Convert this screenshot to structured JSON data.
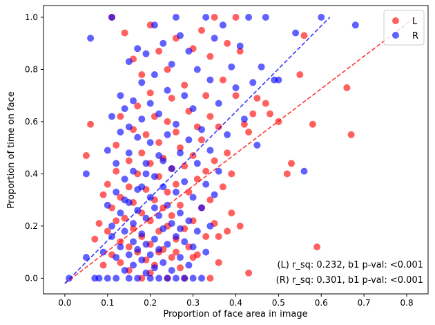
{
  "chart_data": {
    "type": "scatter",
    "xlabel": "Proportion of face area in image",
    "ylabel": "Proportion of time on face",
    "xlim": [
      -0.05,
      0.85
    ],
    "ylim": [
      -0.06,
      1.045
    ],
    "xticks": [
      0.0,
      0.1,
      0.2,
      0.3,
      0.4,
      0.5,
      0.6,
      0.7,
      0.8
    ],
    "yticks": [
      0.0,
      0.2,
      0.4,
      0.6,
      0.8,
      1.0
    ],
    "xtick_labels": [
      "0.0",
      "0.1",
      "0.2",
      "0.3",
      "0.4",
      "0.5",
      "0.6",
      "0.7",
      "0.8"
    ],
    "ytick_labels": [
      "0.0",
      "0.2",
      "0.4",
      "0.6",
      "0.8",
      "1.0"
    ],
    "grid": false,
    "legend_position": "top-right",
    "series": [
      {
        "name": "L",
        "color": "#ff0000",
        "fit_line": {
          "x": [
            0.0,
            0.82
          ],
          "y": [
            -0.02,
            1.0
          ]
        },
        "points": [
          [
            0.06,
            0.59
          ],
          [
            0.05,
            0.47
          ],
          [
            0.07,
            0.15
          ],
          [
            0.08,
            0.21
          ],
          [
            0.09,
            0.32
          ],
          [
            0.09,
            0.05
          ],
          [
            0.1,
            0.18
          ],
          [
            0.1,
            0.36
          ],
          [
            0.11,
            0.27
          ],
          [
            0.11,
            0.09
          ],
          [
            0.11,
            1.0
          ],
          [
            0.12,
            0.22
          ],
          [
            0.12,
            0.51
          ],
          [
            0.12,
            0.41
          ],
          [
            0.13,
            0.14
          ],
          [
            0.13,
            0.06
          ],
          [
            0.13,
            0.31
          ],
          [
            0.13,
            0.62
          ],
          [
            0.14,
            0.23
          ],
          [
            0.14,
            0.94
          ],
          [
            0.15,
            0.12
          ],
          [
            0.15,
            0.45
          ],
          [
            0.15,
            0.35
          ],
          [
            0.15,
            0.03
          ],
          [
            0.16,
            0.19
          ],
          [
            0.16,
            0.29
          ],
          [
            0.16,
            0.57
          ],
          [
            0.16,
            0.84
          ],
          [
            0.17,
            0.1
          ],
          [
            0.17,
            0.4
          ],
          [
            0.17,
            0.66
          ],
          [
            0.18,
            0.16
          ],
          [
            0.18,
            0.25
          ],
          [
            0.18,
            0.48
          ],
          [
            0.18,
            0.78
          ],
          [
            0.19,
            0.07
          ],
          [
            0.19,
            0.34
          ],
          [
            0.19,
            0.55
          ],
          [
            0.2,
            0.13
          ],
          [
            0.2,
            0.22
          ],
          [
            0.2,
            0.44
          ],
          [
            0.2,
            0.71
          ],
          [
            0.2,
            0.97
          ],
          [
            0.21,
            0.05
          ],
          [
            0.21,
            0.3
          ],
          [
            0.21,
            0.62
          ],
          [
            0.22,
            0.18
          ],
          [
            0.22,
            0.39
          ],
          [
            0.22,
            0.52
          ],
          [
            0.22,
            0.87
          ],
          [
            0.23,
            0.11
          ],
          [
            0.23,
            0.27
          ],
          [
            0.23,
            0.46
          ],
          [
            0.24,
            0.2
          ],
          [
            0.24,
            0.33
          ],
          [
            0.24,
            0.6
          ],
          [
            0.24,
            0.8
          ],
          [
            0.25,
            0.08
          ],
          [
            0.25,
            0.24
          ],
          [
            0.25,
            0.42
          ],
          [
            0.25,
            0.69
          ],
          [
            0.26,
            0.15
          ],
          [
            0.26,
            0.36
          ],
          [
            0.26,
            0.56
          ],
          [
            0.26,
            0.92
          ],
          [
            0.27,
            0.04
          ],
          [
            0.27,
            0.28
          ],
          [
            0.27,
            0.5
          ],
          [
            0.28,
            0.19
          ],
          [
            0.28,
            0.43
          ],
          [
            0.28,
            0.74
          ],
          [
            0.29,
            0.12
          ],
          [
            0.29,
            0.33
          ],
          [
            0.29,
            0.64
          ],
          [
            0.3,
            0.22
          ],
          [
            0.3,
            0.47
          ],
          [
            0.3,
            0.88
          ],
          [
            0.31,
            0.09
          ],
          [
            0.31,
            0.38
          ],
          [
            0.31,
            0.58
          ],
          [
            0.32,
            0.27
          ],
          [
            0.32,
            0.53
          ],
          [
            0.32,
            0.95
          ],
          [
            0.33,
            0.16
          ],
          [
            0.33,
            0.41
          ],
          [
            0.33,
            0.7
          ],
          [
            0.34,
            0.3
          ],
          [
            0.34,
            0.62
          ],
          [
            0.34,
            0.85
          ],
          [
            0.35,
            0.21
          ],
          [
            0.35,
            0.45
          ],
          [
            0.35,
            1.0
          ],
          [
            0.36,
            0.06
          ],
          [
            0.36,
            0.58
          ],
          [
            0.37,
            0.35
          ],
          [
            0.37,
            0.76
          ],
          [
            0.38,
            0.48
          ],
          [
            0.38,
            0.9
          ],
          [
            0.39,
            0.4
          ],
          [
            0.39,
            0.25
          ],
          [
            0.4,
            0.7
          ],
          [
            0.4,
            1.0
          ],
          [
            0.41,
            0.2
          ],
          [
            0.41,
            0.87
          ],
          [
            0.42,
            0.59
          ],
          [
            0.43,
            0.02
          ],
          [
            0.43,
            0.56
          ],
          [
            0.44,
            0.63
          ],
          [
            0.45,
            0.69
          ],
          [
            0.47,
            0.67
          ],
          [
            0.48,
            0.63
          ],
          [
            0.5,
            0.6
          ],
          [
            0.52,
            0.4
          ],
          [
            0.53,
            0.44
          ],
          [
            0.55,
            0.78
          ],
          [
            0.56,
            0.93
          ],
          [
            0.58,
            0.59
          ],
          [
            0.59,
            0.12
          ],
          [
            0.66,
            0.73
          ],
          [
            0.67,
            0.55
          ],
          [
            0.24,
            0.0
          ],
          [
            0.28,
            0.0
          ],
          [
            0.2,
            0.02
          ],
          [
            0.34,
            0.0
          ],
          [
            0.36,
            0.16
          ],
          [
            0.38,
            0.18
          ],
          [
            0.18,
            0.0
          ],
          [
            0.26,
            0.1
          ],
          [
            0.3,
            0.08
          ],
          [
            0.22,
            0.1
          ]
        ]
      },
      {
        "name": "R",
        "color": "#0000ff",
        "fit_line": {
          "x": [
            0.0,
            0.62
          ],
          "y": [
            -0.02,
            1.0
          ]
        },
        "points": [
          [
            0.01,
            0.0
          ],
          [
            0.05,
            0.4
          ],
          [
            0.05,
            0.08
          ],
          [
            0.06,
            0.92
          ],
          [
            0.07,
            0.0
          ],
          [
            0.08,
            0.0
          ],
          [
            0.09,
            0.1
          ],
          [
            0.1,
            0.28
          ],
          [
            0.1,
            0.49
          ],
          [
            0.1,
            0.0
          ],
          [
            0.11,
            0.62
          ],
          [
            0.11,
            0.16
          ],
          [
            0.11,
            0.2
          ],
          [
            0.12,
            0.0
          ],
          [
            0.12,
            0.33
          ],
          [
            0.12,
            0.44
          ],
          [
            0.12,
            0.08
          ],
          [
            0.13,
            0.25
          ],
          [
            0.13,
            0.56
          ],
          [
            0.13,
            0.7
          ],
          [
            0.13,
            0.12
          ],
          [
            0.14,
            0.03
          ],
          [
            0.14,
            0.38
          ],
          [
            0.14,
            0.18
          ],
          [
            0.14,
            0.65
          ],
          [
            0.15,
            0.0
          ],
          [
            0.15,
            0.09
          ],
          [
            0.15,
            0.29
          ],
          [
            0.15,
            0.48
          ],
          [
            0.15,
            0.83
          ],
          [
            0.16,
            0.14
          ],
          [
            0.16,
            0.21
          ],
          [
            0.16,
            0.05
          ],
          [
            0.16,
            0.41
          ],
          [
            0.16,
            0.68
          ],
          [
            0.17,
            0.0
          ],
          [
            0.17,
            0.11
          ],
          [
            0.17,
            0.26
          ],
          [
            0.17,
            0.54
          ],
          [
            0.17,
            0.88
          ],
          [
            0.18,
            0.07
          ],
          [
            0.18,
            0.17
          ],
          [
            0.18,
            0.35
          ],
          [
            0.18,
            0.61
          ],
          [
            0.18,
            0.75
          ],
          [
            0.19,
            0.02
          ],
          [
            0.19,
            0.13
          ],
          [
            0.19,
            0.23
          ],
          [
            0.19,
            0.44
          ],
          [
            0.19,
            0.86
          ],
          [
            0.2,
            0.0
          ],
          [
            0.2,
            0.09
          ],
          [
            0.2,
            0.31
          ],
          [
            0.2,
            0.52
          ],
          [
            0.2,
            0.67
          ],
          [
            0.21,
            0.15
          ],
          [
            0.21,
            0.04
          ],
          [
            0.21,
            0.39
          ],
          [
            0.21,
            0.78
          ],
          [
            0.21,
            0.97
          ],
          [
            0.22,
            0.0
          ],
          [
            0.22,
            0.11
          ],
          [
            0.22,
            0.24
          ],
          [
            0.22,
            0.47
          ],
          [
            0.22,
            0.63
          ],
          [
            0.23,
            0.06
          ],
          [
            0.23,
            0.19
          ],
          [
            0.23,
            0.35
          ],
          [
            0.23,
            0.9
          ],
          [
            0.24,
            0.0
          ],
          [
            0.24,
            0.13
          ],
          [
            0.24,
            0.28
          ],
          [
            0.24,
            0.55
          ],
          [
            0.24,
            0.72
          ],
          [
            0.25,
            0.03
          ],
          [
            0.25,
            0.21
          ],
          [
            0.25,
            0.42
          ],
          [
            0.25,
            0.82
          ],
          [
            0.26,
            0.0
          ],
          [
            0.26,
            0.16
          ],
          [
            0.26,
            0.33
          ],
          [
            0.26,
            0.59
          ],
          [
            0.27,
            0.08
          ],
          [
            0.27,
            0.25
          ],
          [
            0.27,
            0.48
          ],
          [
            0.27,
            0.93
          ],
          [
            0.28,
            0.0
          ],
          [
            0.28,
            0.14
          ],
          [
            0.28,
            0.37
          ],
          [
            0.28,
            0.7
          ],
          [
            0.29,
            0.05
          ],
          [
            0.29,
            0.22
          ],
          [
            0.29,
            0.53
          ],
          [
            0.29,
            0.87
          ],
          [
            0.3,
            0.0
          ],
          [
            0.3,
            0.12
          ],
          [
            0.3,
            0.31
          ],
          [
            0.3,
            0.65
          ],
          [
            0.31,
            0.18
          ],
          [
            0.31,
            0.44
          ],
          [
            0.31,
            0.8
          ],
          [
            0.32,
            0.0
          ],
          [
            0.32,
            0.27
          ],
          [
            0.32,
            0.57
          ],
          [
            0.33,
            0.1
          ],
          [
            0.33,
            0.36
          ],
          [
            0.33,
            1.0
          ],
          [
            0.34,
            0.2
          ],
          [
            0.34,
            0.49
          ],
          [
            0.34,
            0.76
          ],
          [
            0.35,
            0.32
          ],
          [
            0.35,
            0.92
          ],
          [
            0.36,
            0.41
          ],
          [
            0.36,
            0.67
          ],
          [
            0.37,
            0.97
          ],
          [
            0.38,
            0.55
          ],
          [
            0.39,
            0.81
          ],
          [
            0.4,
            0.73
          ],
          [
            0.41,
            0.89
          ],
          [
            0.42,
            0.61
          ],
          [
            0.43,
            1.0
          ],
          [
            0.44,
            0.75
          ],
          [
            0.45,
            0.51
          ],
          [
            0.46,
            0.81
          ],
          [
            0.47,
            1.0
          ],
          [
            0.49,
            0.76
          ],
          [
            0.5,
            0.76
          ],
          [
            0.54,
            0.94
          ],
          [
            0.56,
            0.41
          ],
          [
            0.6,
            1.0
          ],
          [
            0.68,
            0.97
          ],
          [
            0.11,
            1.0
          ],
          [
            0.26,
            1.0
          ],
          [
            0.14,
            0.3
          ],
          [
            0.19,
            0.4
          ],
          [
            0.23,
            0.45
          ],
          [
            0.17,
            0.34
          ],
          [
            0.15,
            0.58
          ],
          [
            0.21,
            0.27
          ],
          [
            0.27,
            0.19
          ]
        ]
      }
    ],
    "annotations": [
      "(L) r_sq: 0.232, b1 p-val: <0.001",
      "(R) r_sq: 0.301, b1 p-val: <0.001"
    ]
  }
}
